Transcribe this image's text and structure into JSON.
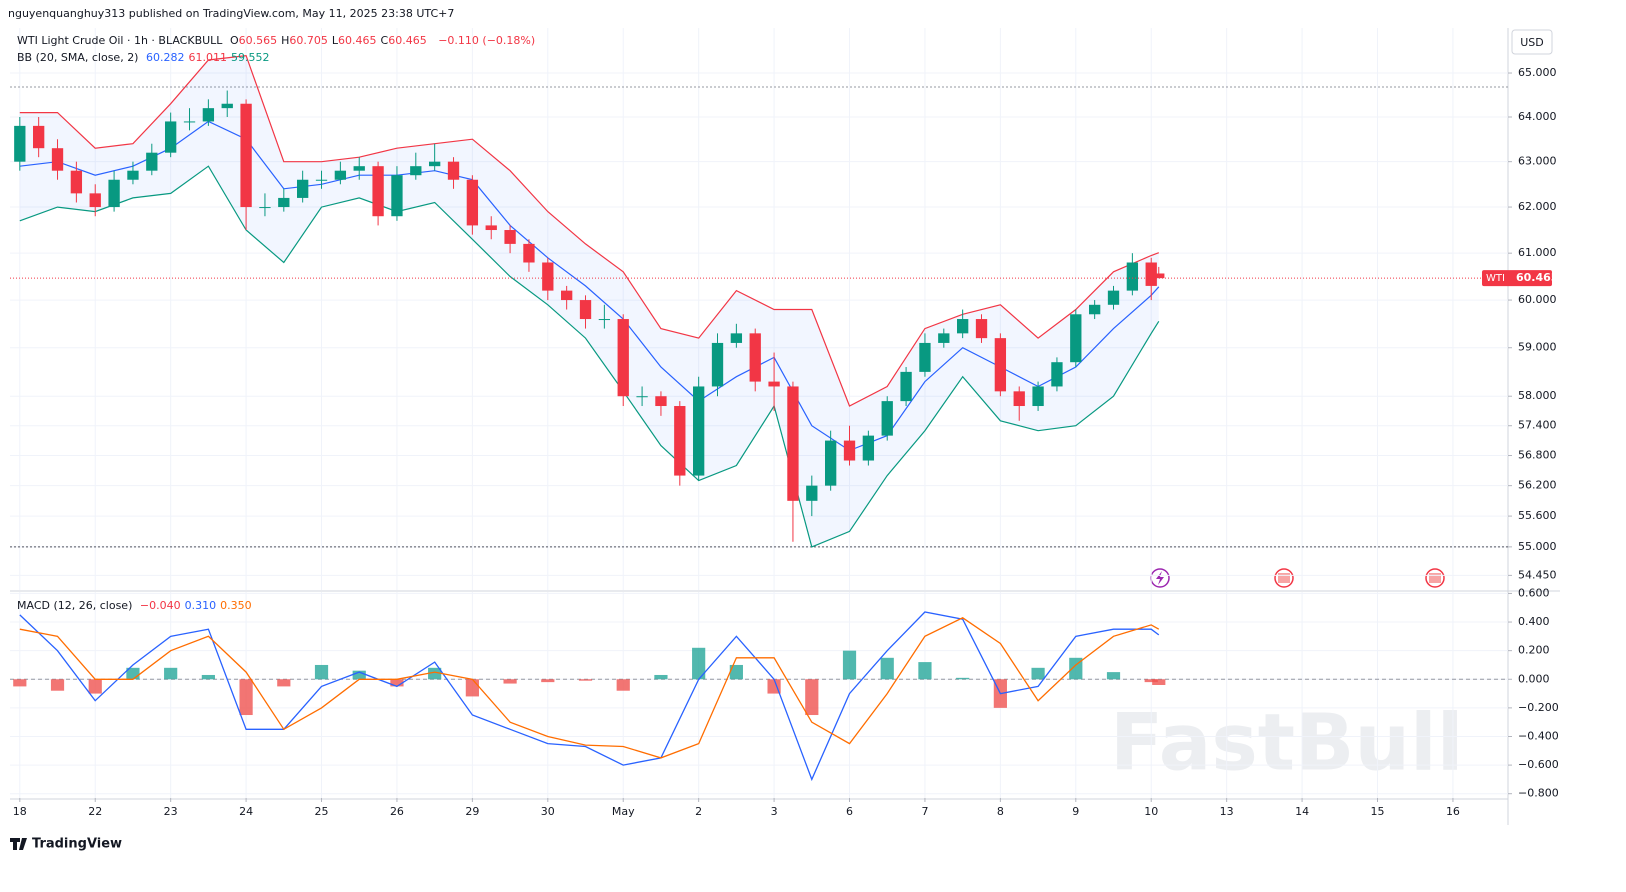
{
  "header": {
    "publisher": "nguyenquanghuy313 published on TradingView.com, May 11, 2025 23:38 UTC+7",
    "brand": "TradingView",
    "watermark": "FastBull"
  },
  "chart_data": [
    {
      "type": "candlestick",
      "title": "WTI Light Crude Oil · 1h · BLACKBULL",
      "legend_values": [
        {
          "name": "O",
          "value": 60.565
        },
        {
          "name": "H",
          "value": 60.705
        },
        {
          "name": "L",
          "value": 60.465
        },
        {
          "name": "C",
          "value": 60.465
        }
      ],
      "change": "−0.110 (−0.18%)",
      "x": [
        0,
        0.25,
        0.5,
        0.75,
        1,
        1.25,
        1.5,
        1.75,
        2,
        2.25,
        2.5,
        2.75,
        3,
        3.25,
        3.5,
        3.75,
        4,
        4.25,
        4.5,
        4.75,
        5,
        5.25,
        5.5,
        5.75,
        6,
        6.25,
        6.5,
        6.75,
        7,
        7.25,
        7.5,
        7.75,
        8,
        8.25,
        8.5,
        8.75,
        9,
        9.25,
        9.5,
        9.75,
        10,
        10.25,
        10.5,
        10.75,
        11,
        11.25,
        11.5,
        11.75,
        12,
        12.25,
        12.5,
        12.75,
        13,
        13.25,
        13.5,
        13.75,
        14,
        14.25,
        14.5,
        14.75,
        15,
        15.1
      ],
      "open": [
        63.0,
        63.8,
        63.3,
        62.8,
        62.3,
        62.0,
        62.6,
        62.8,
        63.2,
        63.9,
        63.9,
        64.2,
        64.3,
        62.0,
        62.0,
        62.2,
        62.6,
        62.6,
        62.8,
        62.9,
        61.8,
        62.7,
        62.9,
        63.0,
        62.6,
        61.6,
        61.5,
        61.2,
        60.8,
        60.2,
        60.0,
        59.6,
        59.6,
        58.0,
        58.0,
        57.8,
        56.4,
        58.2,
        59.1,
        59.3,
        58.3,
        58.2,
        55.9,
        56.2,
        57.1,
        56.7,
        57.2,
        57.9,
        58.5,
        59.1,
        59.3,
        59.6,
        59.2,
        58.1,
        57.8,
        58.2,
        58.7,
        59.7,
        59.9,
        60.2,
        60.8,
        60.565
      ],
      "high": [
        64.0,
        64.0,
        63.5,
        63.0,
        62.5,
        62.8,
        63.0,
        63.4,
        64.1,
        64.2,
        64.4,
        64.6,
        64.4,
        62.3,
        62.4,
        62.8,
        62.8,
        63.0,
        63.1,
        63.0,
        62.9,
        63.2,
        63.4,
        63.1,
        62.7,
        61.8,
        61.6,
        61.3,
        60.9,
        60.3,
        60.1,
        59.9,
        59.7,
        58.2,
        58.1,
        57.9,
        58.4,
        59.3,
        59.5,
        59.4,
        58.9,
        58.3,
        56.4,
        57.3,
        57.4,
        57.3,
        58.0,
        58.6,
        59.3,
        59.4,
        59.8,
        59.7,
        59.3,
        58.2,
        58.3,
        58.8,
        59.8,
        60.0,
        60.3,
        61.0,
        60.9,
        60.705
      ],
      "low": [
        62.8,
        63.1,
        62.6,
        62.1,
        61.8,
        61.9,
        62.5,
        62.7,
        63.1,
        63.7,
        63.8,
        64.0,
        61.5,
        61.8,
        61.9,
        62.1,
        62.4,
        62.5,
        62.6,
        61.6,
        61.7,
        62.6,
        62.8,
        62.4,
        61.4,
        61.3,
        61.0,
        60.6,
        60.0,
        59.8,
        59.4,
        59.4,
        57.8,
        57.8,
        57.6,
        56.2,
        56.3,
        58.0,
        59.0,
        58.1,
        57.7,
        55.1,
        55.6,
        56.1,
        56.6,
        56.6,
        57.1,
        57.8,
        58.4,
        59.0,
        59.2,
        59.1,
        58.0,
        57.5,
        57.7,
        58.1,
        58.6,
        59.6,
        59.8,
        60.1,
        60.0,
        60.465
      ],
      "close": [
        63.8,
        63.3,
        62.8,
        62.3,
        62.0,
        62.6,
        62.8,
        63.2,
        63.9,
        63.9,
        64.2,
        64.3,
        62.0,
        62.0,
        62.2,
        62.6,
        62.6,
        62.8,
        62.9,
        61.8,
        62.7,
        62.9,
        63.0,
        62.6,
        61.6,
        61.5,
        61.2,
        60.8,
        60.2,
        60.0,
        59.6,
        59.6,
        58.0,
        58.0,
        57.8,
        56.4,
        58.2,
        59.1,
        59.3,
        58.3,
        58.2,
        55.9,
        56.2,
        57.1,
        56.7,
        57.2,
        57.9,
        58.5,
        59.1,
        59.3,
        59.6,
        59.2,
        58.1,
        57.8,
        58.2,
        58.7,
        59.7,
        59.9,
        60.2,
        60.8,
        60.3,
        60.465
      ],
      "up_color": "#089981",
      "down_color": "#f23645",
      "overlay": {
        "name": "BB (20, SMA, close, 2)",
        "fill": "#2962ff",
        "x": [
          0,
          0.5,
          1,
          1.5,
          2,
          2.5,
          3,
          3.5,
          4,
          4.5,
          5,
          5.5,
          6,
          6.5,
          7,
          7.5,
          8,
          8.5,
          9,
          9.5,
          10,
          10.5,
          11,
          11.5,
          12,
          12.5,
          13,
          13.5,
          14,
          14.5,
          15,
          15.1
        ],
        "series": [
          {
            "color": "#2962ff",
            "last": 60.282,
            "values": [
              62.9,
              63.0,
              62.7,
              62.9,
              63.3,
              63.9,
              63.5,
              62.4,
              62.5,
              62.7,
              62.7,
              62.8,
              62.6,
              61.6,
              60.9,
              60.3,
              59.6,
              58.6,
              57.9,
              58.4,
              58.8,
              57.4,
              56.9,
              57.2,
              58.3,
              59.0,
              58.6,
              58.2,
              58.6,
              59.4,
              60.1,
              60.282
            ]
          },
          {
            "color": "#f23645",
            "last": 61.011,
            "values": [
              64.1,
              64.1,
              63.3,
              63.4,
              64.3,
              65.3,
              65.4,
              63.0,
              63.0,
              63.1,
              63.3,
              63.4,
              63.5,
              62.8,
              61.9,
              61.2,
              60.6,
              59.4,
              59.2,
              60.2,
              59.8,
              59.8,
              57.8,
              58.2,
              59.4,
              59.7,
              59.9,
              59.2,
              59.8,
              60.6,
              60.95,
              61.011
            ]
          },
          {
            "color": "#089981",
            "last": 59.552,
            "values": [
              61.7,
              62.0,
              61.9,
              62.2,
              62.3,
              62.9,
              61.5,
              60.8,
              62.0,
              62.2,
              61.9,
              62.1,
              61.3,
              60.5,
              59.9,
              59.2,
              58.1,
              57.0,
              56.3,
              56.6,
              57.8,
              55.0,
              55.3,
              56.4,
              57.3,
              58.4,
              57.5,
              57.3,
              57.4,
              58.0,
              59.3,
              59.552
            ]
          }
        ]
      },
      "log_scale": true,
      "ylim": [
        54.17,
        66.04
      ],
      "yticks": [
        {
          "value": 65,
          "label": "65.000"
        },
        {
          "value": 64,
          "label": "64.000"
        },
        {
          "value": 63,
          "label": "63.000"
        },
        {
          "value": 62,
          "label": "62.000"
        },
        {
          "value": 61,
          "label": "61.000"
        },
        {
          "value": 60,
          "label": "60.000"
        },
        {
          "value": 59,
          "label": "59.000"
        },
        {
          "value": 58,
          "label": "58.000"
        },
        {
          "value": 57.4,
          "label": "57.400"
        },
        {
          "value": 56.8,
          "label": "56.800"
        },
        {
          "value": 56.2,
          "label": "56.200"
        },
        {
          "value": 55.6,
          "label": "55.600"
        },
        {
          "value": 55,
          "label": "55.000"
        },
        {
          "value": 54.45,
          "label": "54.450"
        }
      ],
      "xlim": [
        -0.13,
        19.73
      ],
      "xticks": [
        {
          "value": 0,
          "label": "18"
        },
        {
          "value": 1,
          "label": "22"
        },
        {
          "value": 2,
          "label": "23"
        },
        {
          "value": 3,
          "label": "24"
        },
        {
          "value": 4,
          "label": "25"
        },
        {
          "value": 5,
          "label": "26"
        },
        {
          "value": 6,
          "label": "29"
        },
        {
          "value": 7,
          "label": "30"
        },
        {
          "value": 8,
          "label": "May"
        },
        {
          "value": 9,
          "label": "2"
        },
        {
          "value": 10,
          "label": "3"
        },
        {
          "value": 11,
          "label": "6"
        },
        {
          "value": 12,
          "label": "7"
        },
        {
          "value": 13,
          "label": "8"
        },
        {
          "value": 14,
          "label": "9"
        },
        {
          "value": 15,
          "label": "10"
        },
        {
          "value": 16,
          "label": "13"
        },
        {
          "value": 17,
          "label": "14"
        },
        {
          "value": 18,
          "label": "15"
        },
        {
          "value": 19,
          "label": "16"
        }
      ],
      "grid": true,
      "currency": "USD",
      "last_price": {
        "symbol": "WTI",
        "value": 60.465,
        "color": "#f23645"
      },
      "hlines": [
        {
          "value": 64.68,
          "color": "#9598a1"
        },
        {
          "value": 55.0,
          "color": "#50535e"
        }
      ]
    },
    {
      "type": "macd",
      "title": "MACD (12, 26, close)",
      "legend_values": [
        {
          "value": -0.04,
          "label": "−0.040",
          "color": "#f23645"
        },
        {
          "value": 0.31,
          "label": "0.310",
          "color": "#2962ff"
        },
        {
          "value": 0.35,
          "label": "0.350",
          "color": "#ff6d00"
        }
      ],
      "x": [
        0,
        0.5,
        1,
        1.5,
        2,
        2.5,
        3,
        3.5,
        4,
        4.5,
        5,
        5.5,
        6,
        6.5,
        7,
        7.5,
        8,
        8.5,
        9,
        9.5,
        10,
        10.5,
        11,
        11.5,
        12,
        12.5,
        13,
        13.5,
        14,
        14.5,
        15,
        15.1
      ],
      "histogram": {
        "up_color": "#26a69a",
        "down_color": "#ef5350",
        "values": [
          -0.05,
          -0.08,
          -0.1,
          0.08,
          0.08,
          0.03,
          -0.25,
          -0.05,
          0.1,
          0.06,
          -0.05,
          0.08,
          -0.12,
          -0.03,
          -0.02,
          -0.01,
          -0.08,
          0.03,
          0.22,
          0.1,
          -0.1,
          -0.25,
          0.2,
          0.15,
          0.12,
          0.01,
          -0.2,
          0.08,
          0.15,
          0.05,
          -0.02,
          -0.04
        ]
      },
      "series": [
        {
          "color": "#2962ff",
          "values": [
            0.45,
            0.2,
            -0.15,
            0.1,
            0.3,
            0.35,
            -0.35,
            -0.35,
            -0.05,
            0.05,
            -0.05,
            0.12,
            -0.25,
            -0.35,
            -0.45,
            -0.47,
            -0.6,
            -0.55,
            0.0,
            0.3,
            0.0,
            -0.7,
            -0.1,
            0.2,
            0.47,
            0.42,
            -0.1,
            -0.05,
            0.3,
            0.35,
            0.35,
            0.31
          ]
        },
        {
          "color": "#ff6d00",
          "values": [
            0.35,
            0.3,
            0.0,
            0.0,
            0.2,
            0.3,
            0.05,
            -0.35,
            -0.2,
            0.0,
            0.0,
            0.05,
            0.0,
            -0.3,
            -0.4,
            -0.46,
            -0.47,
            -0.55,
            -0.45,
            0.15,
            0.15,
            -0.3,
            -0.45,
            -0.1,
            0.3,
            0.43,
            0.25,
            -0.15,
            0.1,
            0.3,
            0.38,
            0.35
          ]
        }
      ],
      "ylim": [
        -0.83,
        0.61
      ],
      "yticks": [
        {
          "value": 0.6,
          "label": "0.600"
        },
        {
          "value": 0.4,
          "label": "0.400"
        },
        {
          "value": 0.2,
          "label": "0.200"
        },
        {
          "value": 0,
          "label": "0.000"
        },
        {
          "value": -0.2,
          "label": "−0.200"
        },
        {
          "value": -0.4,
          "label": "−0.400"
        },
        {
          "value": -0.6,
          "label": "−0.600"
        },
        {
          "value": -0.8,
          "label": "−0.800"
        }
      ]
    }
  ]
}
